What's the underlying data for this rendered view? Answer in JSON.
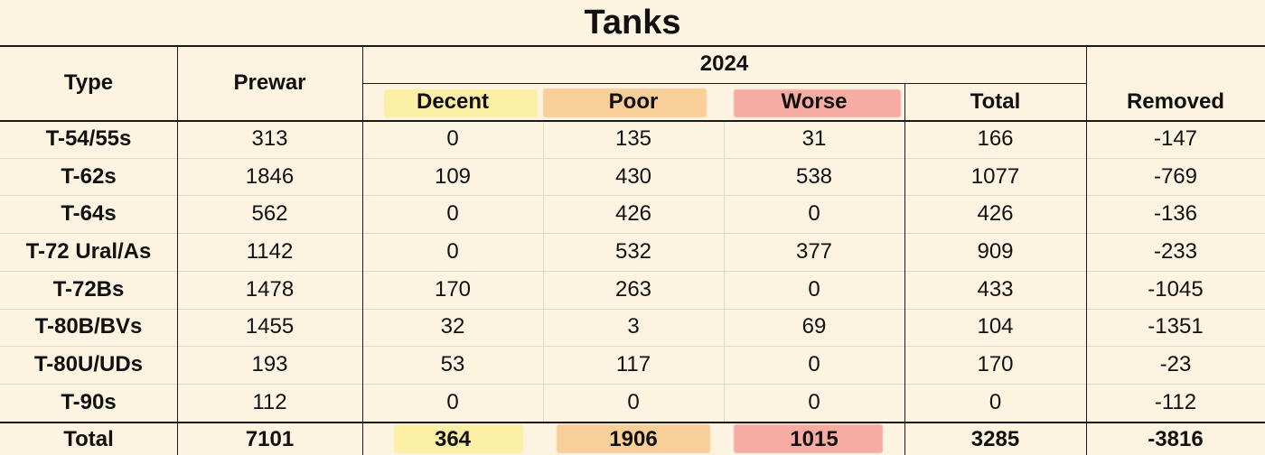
{
  "chart_data": {
    "type": "table",
    "title": "Tanks",
    "group_header": "2024",
    "headers": {
      "type": "Type",
      "prewar": "Prewar",
      "decent": "Decent",
      "poor": "Poor",
      "worse": "Worse",
      "total": "Total",
      "removed": "Removed"
    },
    "rows": [
      {
        "type": "T-54/55s",
        "prewar": "313",
        "decent": "0",
        "poor": "135",
        "worse": "31",
        "total": "166",
        "removed": "-147"
      },
      {
        "type": "T-62s",
        "prewar": "1846",
        "decent": "109",
        "poor": "430",
        "worse": "538",
        "total": "1077",
        "removed": "-769"
      },
      {
        "type": "T-64s",
        "prewar": "562",
        "decent": "0",
        "poor": "426",
        "worse": "0",
        "total": "426",
        "removed": "-136"
      },
      {
        "type": "T-72 Ural/As",
        "prewar": "1142",
        "decent": "0",
        "poor": "532",
        "worse": "377",
        "total": "909",
        "removed": "-233"
      },
      {
        "type": "T-72Bs",
        "prewar": "1478",
        "decent": "170",
        "poor": "263",
        "worse": "0",
        "total": "433",
        "removed": "-1045"
      },
      {
        "type": "T-80B/BVs",
        "prewar": "1455",
        "decent": "32",
        "poor": "3",
        "worse": "69",
        "total": "104",
        "removed": "-1351"
      },
      {
        "type": "T-80U/UDs",
        "prewar": "193",
        "decent": "53",
        "poor": "117",
        "worse": "0",
        "total": "170",
        "removed": "-23"
      },
      {
        "type": "T-90s",
        "prewar": "112",
        "decent": "0",
        "poor": "0",
        "worse": "0",
        "total": "0",
        "removed": "-112"
      }
    ],
    "total_row": {
      "type": "Total",
      "prewar": "7101",
      "decent": "364",
      "poor": "1906",
      "worse": "1015",
      "total": "3285",
      "removed": "-3816"
    },
    "highlight_colors": {
      "decent": "#fbefa5",
      "poor": "#f8cf98",
      "worse": "#f6aca3"
    },
    "background": "#fdf3e1"
  }
}
